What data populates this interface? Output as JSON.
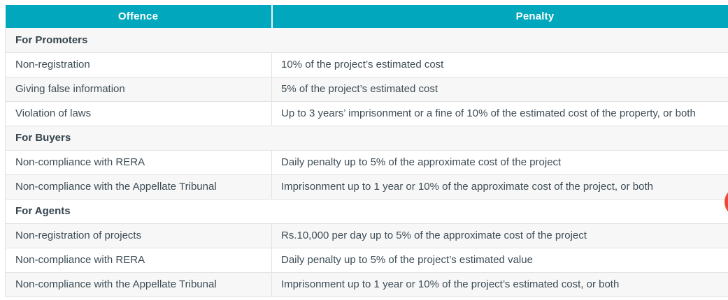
{
  "colors": {
    "header_bg": "#00a7bd",
    "header_text": "#ffffff",
    "stripe_bg": "#f7f7f7",
    "border": "#e2e2e2",
    "body_text": "#3e4d56",
    "widget_red": "#e8493a"
  },
  "table": {
    "columns": [
      {
        "label": "Offence"
      },
      {
        "label": "Penalty"
      }
    ],
    "sections": [
      {
        "title": "For Promoters",
        "rows": [
          {
            "offence": "Non-registration",
            "penalty": "10% of the project’s estimated cost"
          },
          {
            "offence": "Giving false information",
            "penalty": "5% of the project’s estimated cost"
          },
          {
            "offence": "Violation of laws",
            "penalty": "Up to 3 years’ imprisonment or a fine of 10% of the estimated cost of the property, or both"
          }
        ]
      },
      {
        "title": "For Buyers",
        "rows": [
          {
            "offence": "Non-compliance with RERA",
            "penalty": "Daily penalty up to 5% of the approximate cost of the project"
          },
          {
            "offence": "Non-compliance with the Appellate Tribunal",
            "penalty": "Imprisonment up to 1 year or 10% of the approximate cost of the project, or both"
          }
        ]
      },
      {
        "title": "For Agents",
        "rows": [
          {
            "offence": "Non-registration of projects",
            "penalty": "Rs.10,000 per day up to 5% of the approximate cost of the project"
          },
          {
            "offence": "Non-compliance with RERA",
            "penalty": "Daily penalty up to 5% of the project’s estimated value"
          },
          {
            "offence": "Non-compliance with the Appellate Tribunal",
            "penalty": "Imprisonment up to 1 year or 10% of the project’s estimated cost, or both"
          }
        ]
      }
    ]
  },
  "floating_widget": {
    "name": "floating-action-button"
  }
}
